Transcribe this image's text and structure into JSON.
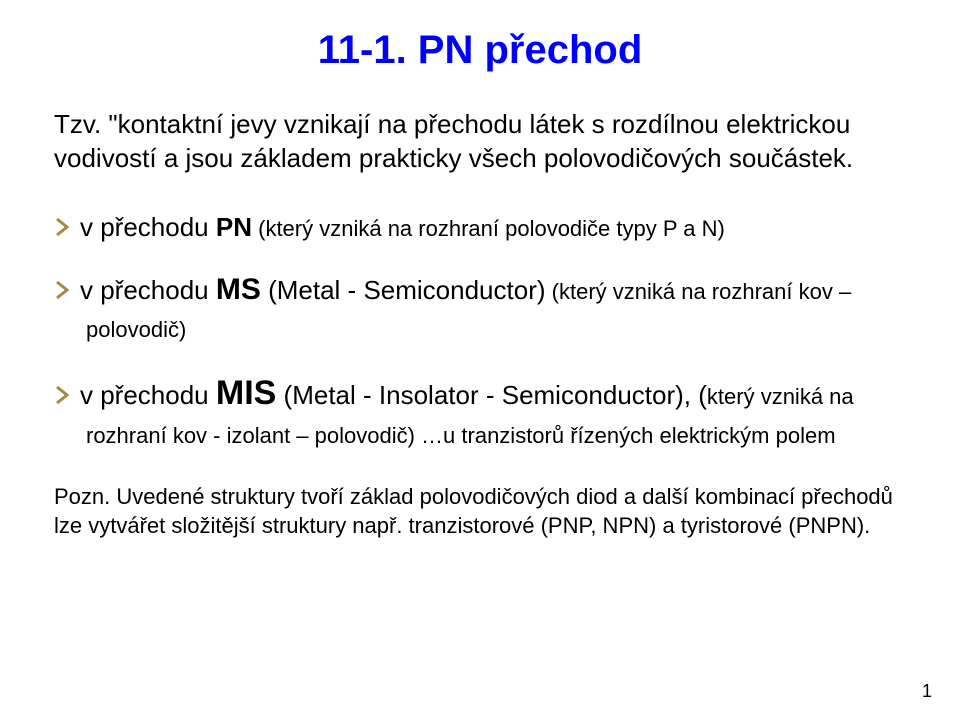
{
  "title": "11-1. PN přechod",
  "intro": "Tzv. \"kontaktní jevy vznikají na přechodu  látek s rozdílnou elektrickou vodivostí a jsou základem prakticky všech polovodičových součástek.",
  "chevron_color": "#a58b41",
  "bullets": [
    {
      "pre": "v přechodu ",
      "label": "PN",
      "label_class": "",
      "tail_small": " (který vzniká na rozhraní polovodiče typy P a N)",
      "post": ""
    },
    {
      "pre": "v přechodu ",
      "label": "MS",
      "label_class": "ms-big",
      "tail_small": " (který vzniká na rozhraní kov – polovodič)",
      "post": " (Metal - Semiconductor)"
    },
    {
      "pre": "v přechodu ",
      "label": "MIS",
      "label_class": "mis-big",
      "tail_small": "který vzniká na rozhraní kov - izolant – polovodič) …u tranzistorů řízených elektrickým polem",
      "post": " (Metal - Insolator - Semiconductor), (",
      "tail_prefix_open": true
    }
  ],
  "note": "Pozn. Uvedené struktury tvoří základ polovodičových diod a další kombinací přechodů  lze vytvářet složitější struktury např. tranzistorové (PNP, NPN) a tyristorové (PNPN).",
  "page_number": "1"
}
